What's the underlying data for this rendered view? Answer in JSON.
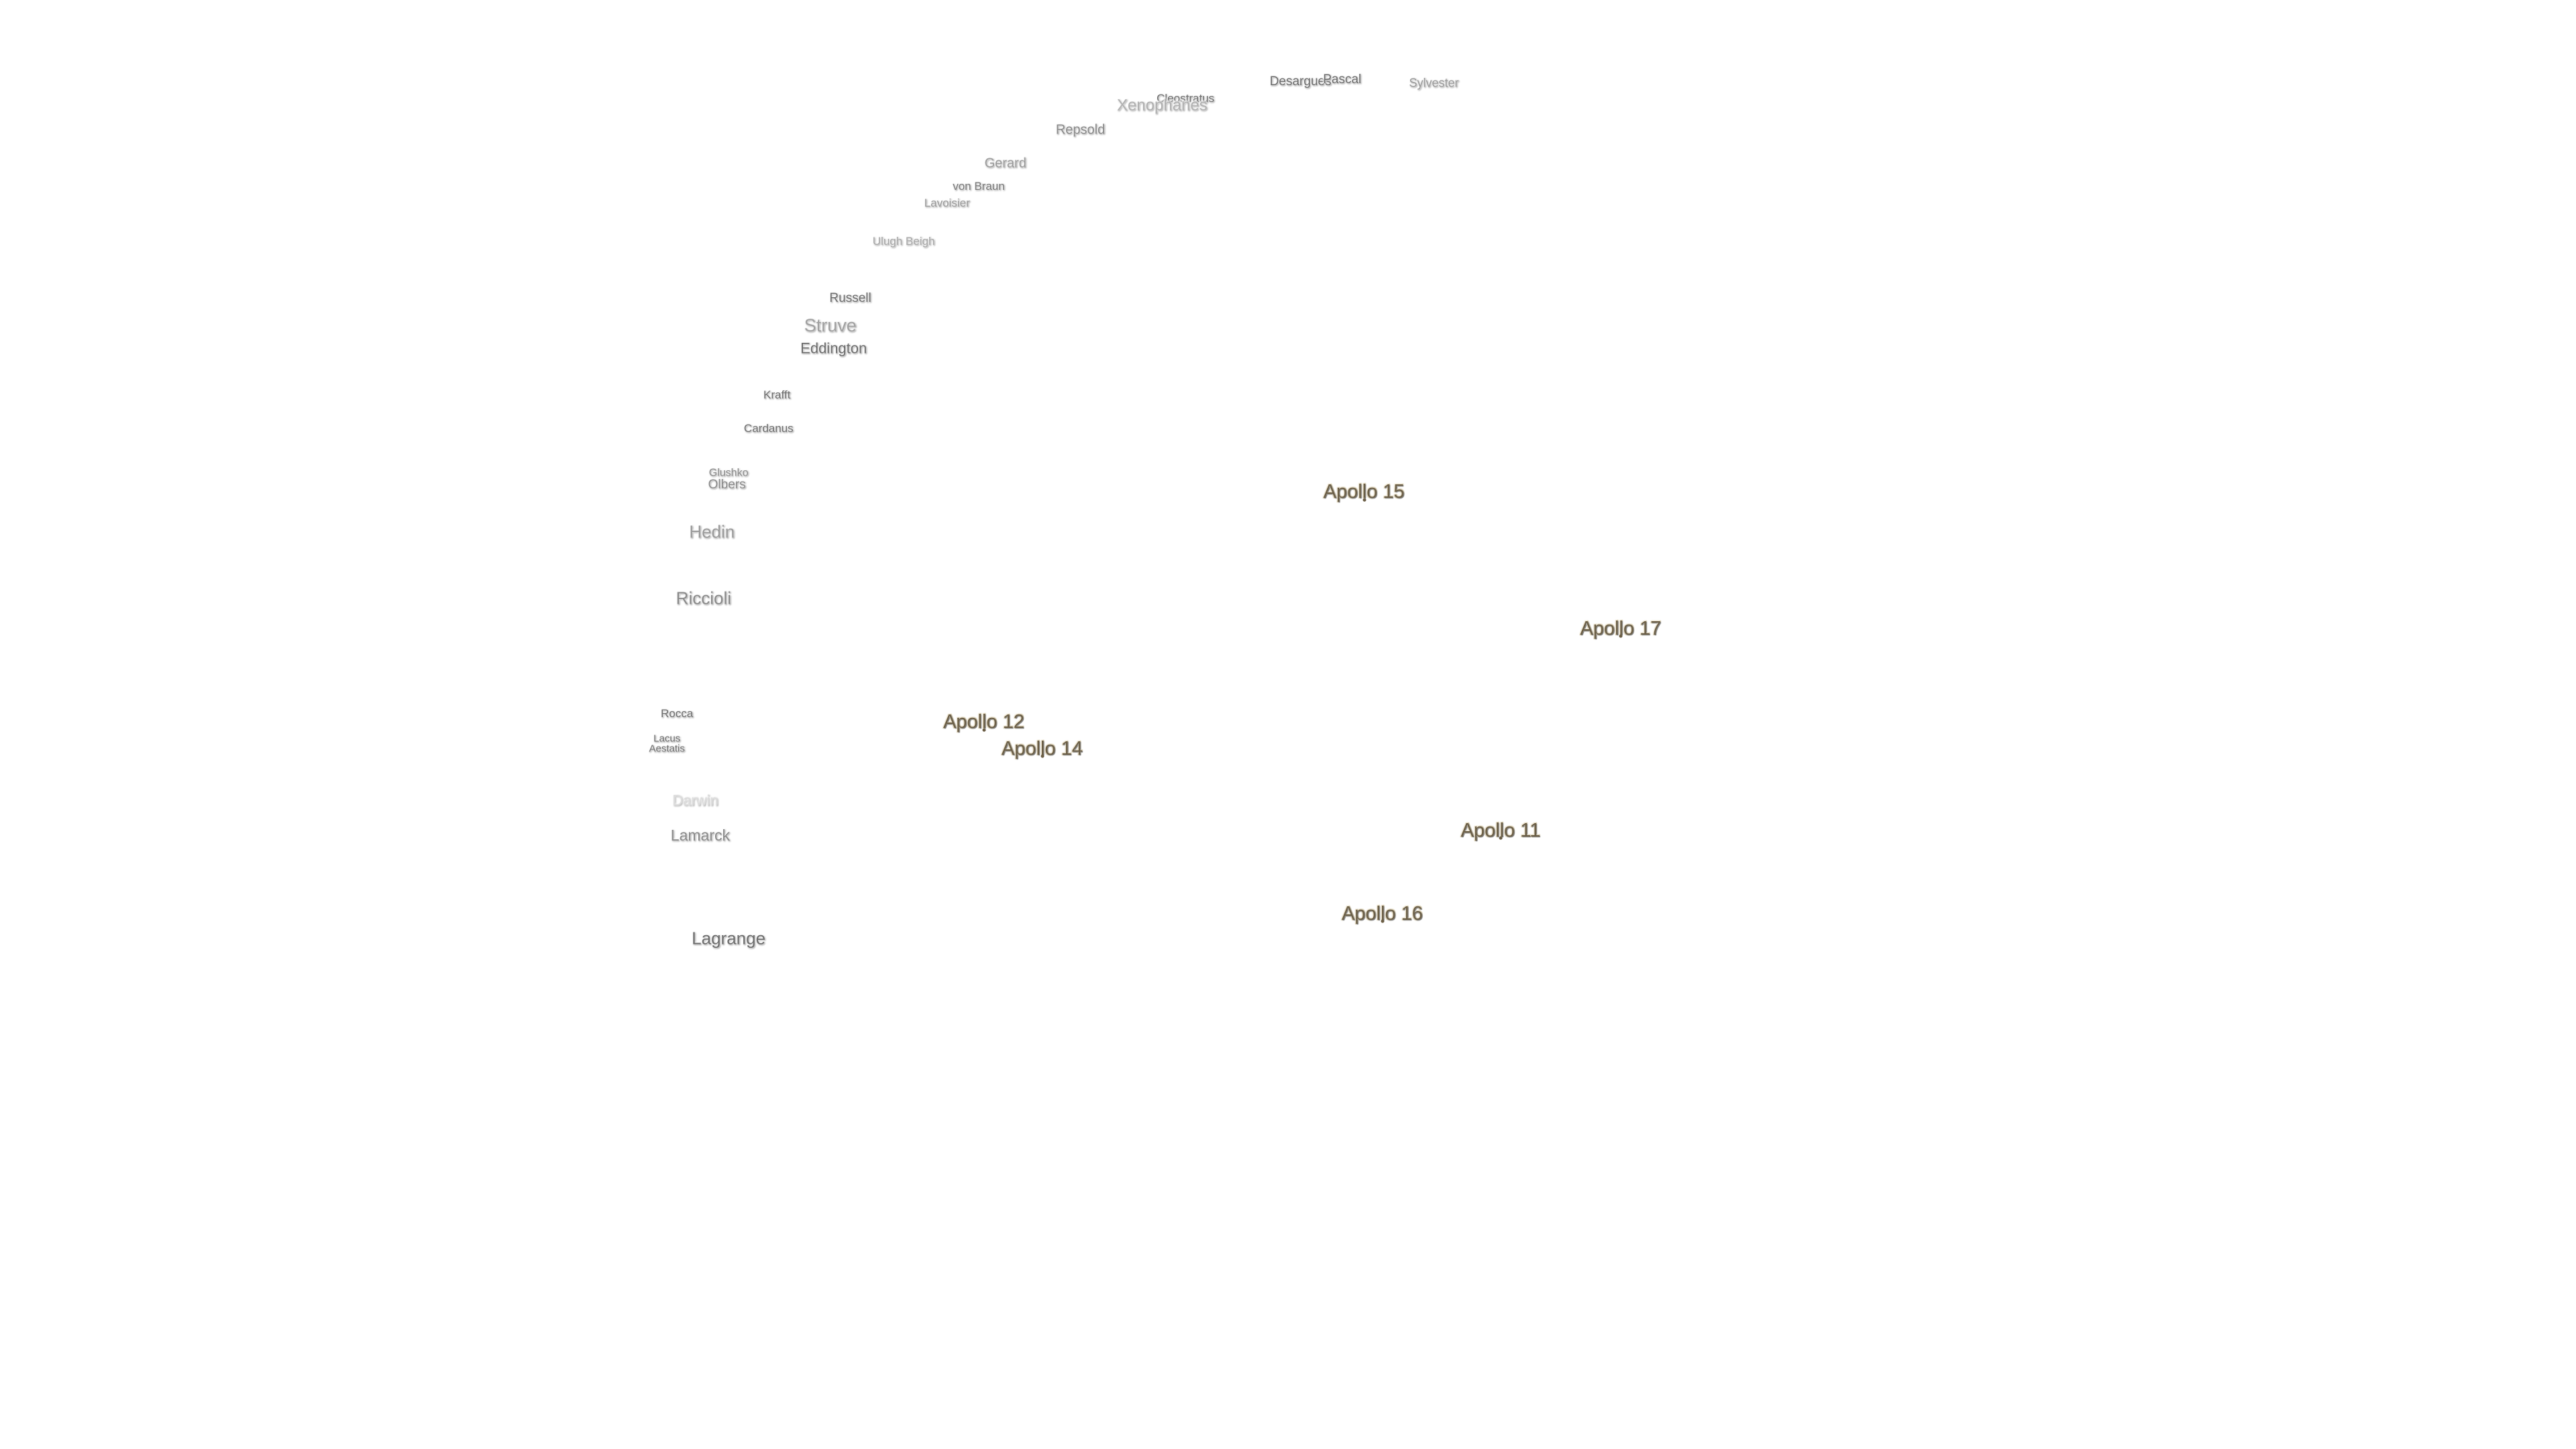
{
  "craters": [
    {
      "name": "Desargues"
    },
    {
      "name": "Pascal"
    },
    {
      "name": "Sylvester"
    },
    {
      "name": "Cleostratus"
    },
    {
      "name": "Xenophanes"
    },
    {
      "name": "Repsold"
    },
    {
      "name": "Gerard"
    },
    {
      "name": "von Braun"
    },
    {
      "name": "Lavoisier"
    },
    {
      "name": "Ulugh Beigh"
    },
    {
      "name": "Russell"
    },
    {
      "name": "Struve"
    },
    {
      "name": "Eddington"
    },
    {
      "name": "Krafft"
    },
    {
      "name": "Cardanus"
    },
    {
      "name": "Glushko"
    },
    {
      "name": "Olbers"
    },
    {
      "name": "Hedin"
    },
    {
      "name": "Riccioli"
    },
    {
      "name": "Rocca"
    },
    {
      "name": "Lacus Aestatis"
    },
    {
      "name": "Darwin"
    },
    {
      "name": "Lamarck"
    },
    {
      "name": "Lagrange"
    }
  ],
  "landing_sites": [
    {
      "name": "Apollo 15"
    },
    {
      "name": "Apollo 17"
    },
    {
      "name": "Apollo 12"
    },
    {
      "name": "Apollo 14"
    },
    {
      "name": "Apollo 11"
    },
    {
      "name": "Apollo 16"
    }
  ]
}
